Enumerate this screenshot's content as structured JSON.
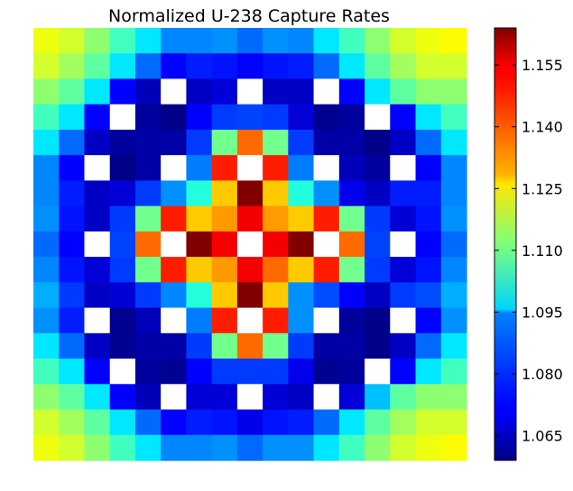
{
  "chart_data": {
    "type": "heatmap",
    "title": "Normalized U-238 Capture Rates",
    "xlabel": "",
    "ylabel": "",
    "grid": false,
    "colormap": "jet",
    "missing_color": "#ffffff",
    "vmin": 1.059,
    "vmax": 1.164,
    "colorbar": {
      "ticks": [
        1.065,
        1.08,
        1.095,
        1.11,
        1.125,
        1.14,
        1.155
      ],
      "tick_labels": [
        "1.065",
        "1.080",
        "1.095",
        "1.110",
        "1.125",
        "1.140",
        "1.155"
      ]
    },
    "rows": 17,
    "cols": 17,
    "values": [
      [
        1.123,
        1.12,
        1.113,
        1.105,
        1.096,
        1.086,
        1.086,
        1.087,
        1.083,
        1.087,
        1.086,
        1.096,
        1.105,
        1.113,
        1.12,
        1.123,
        1.125
      ],
      [
        1.12,
        1.115,
        1.108,
        1.096,
        1.083,
        1.072,
        1.075,
        1.074,
        1.072,
        1.074,
        1.075,
        1.083,
        1.096,
        1.108,
        1.115,
        1.12,
        1.12
      ],
      [
        1.113,
        1.108,
        1.096,
        1.072,
        1.065,
        null,
        1.066,
        1.068,
        null,
        1.066,
        1.066,
        null,
        1.072,
        1.096,
        1.108,
        1.113,
        1.113
      ],
      [
        1.105,
        1.096,
        1.072,
        null,
        1.062,
        1.06,
        1.072,
        1.078,
        1.079,
        1.078,
        1.068,
        1.061,
        1.062,
        null,
        1.072,
        1.096,
        1.105
      ],
      [
        1.096,
        1.083,
        1.066,
        1.062,
        1.063,
        1.063,
        1.078,
        1.11,
        1.14,
        1.11,
        1.078,
        1.063,
        1.063,
        1.06,
        1.066,
        1.083,
        1.096
      ],
      [
        1.086,
        1.072,
        null,
        1.06,
        1.063,
        null,
        1.085,
        1.148,
        null,
        1.148,
        1.085,
        null,
        1.065,
        1.062,
        null,
        1.072,
        1.086
      ],
      [
        1.086,
        1.075,
        1.066,
        1.068,
        1.078,
        1.087,
        1.102,
        1.13,
        1.164,
        1.13,
        1.102,
        1.087,
        1.07,
        1.066,
        1.075,
        1.075,
        1.086
      ],
      [
        1.087,
        1.074,
        1.066,
        1.078,
        1.11,
        1.148,
        1.13,
        1.135,
        1.152,
        1.135,
        1.13,
        1.148,
        1.11,
        1.078,
        1.068,
        1.074,
        1.087
      ],
      [
        1.083,
        1.072,
        null,
        1.079,
        1.14,
        null,
        1.164,
        1.152,
        null,
        1.152,
        1.164,
        null,
        1.14,
        1.079,
        null,
        1.072,
        1.083
      ],
      [
        1.086,
        1.074,
        1.068,
        1.078,
        1.11,
        1.148,
        1.13,
        1.135,
        1.152,
        1.14,
        1.13,
        1.148,
        1.11,
        1.078,
        1.068,
        1.074,
        1.086
      ],
      [
        1.09,
        1.078,
        1.066,
        1.068,
        1.078,
        1.086,
        1.102,
        1.13,
        1.164,
        1.13,
        1.087,
        1.08,
        1.072,
        1.066,
        1.078,
        1.08,
        1.09
      ],
      [
        1.087,
        1.075,
        null,
        1.061,
        1.065,
        null,
        1.085,
        1.148,
        null,
        1.148,
        1.087,
        null,
        1.062,
        1.06,
        null,
        1.072,
        1.087
      ],
      [
        1.096,
        1.083,
        1.066,
        1.061,
        1.063,
        1.063,
        1.078,
        1.11,
        1.14,
        1.11,
        1.078,
        1.063,
        1.063,
        1.06,
        1.066,
        1.083,
        1.096
      ],
      [
        1.105,
        1.096,
        1.072,
        null,
        1.062,
        1.061,
        1.072,
        1.078,
        1.078,
        1.078,
        1.07,
        1.061,
        1.062,
        null,
        1.072,
        1.096,
        1.105
      ],
      [
        1.113,
        1.108,
        1.096,
        1.072,
        1.065,
        null,
        1.068,
        1.068,
        null,
        1.068,
        1.066,
        null,
        1.068,
        1.092,
        1.108,
        1.113,
        1.113
      ],
      [
        1.12,
        1.115,
        1.108,
        1.096,
        1.083,
        1.072,
        1.075,
        1.074,
        1.07,
        1.074,
        1.075,
        1.083,
        1.096,
        1.108,
        1.115,
        1.12,
        1.12
      ],
      [
        1.123,
        1.12,
        1.113,
        1.105,
        1.096,
        1.086,
        1.086,
        1.087,
        1.083,
        1.087,
        1.087,
        1.096,
        1.105,
        1.113,
        1.12,
        1.123,
        1.125
      ]
    ]
  }
}
